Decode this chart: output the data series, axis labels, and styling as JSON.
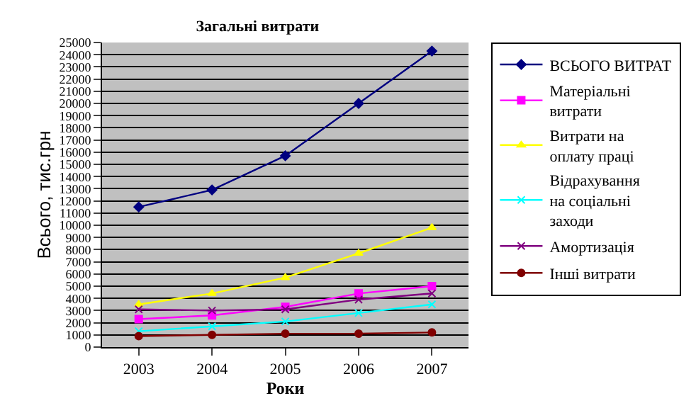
{
  "chart_data": {
    "type": "line",
    "title": "Загальні витрати",
    "xlabel": "Роки",
    "ylabel": "Всього, тис.грн",
    "categories": [
      "2003",
      "2004",
      "2005",
      "2006",
      "2007"
    ],
    "series": [
      {
        "name": "ВСЬОГО ВИТРАТ",
        "color": "#000080",
        "marker": "diamond",
        "values": [
          11500,
          12900,
          15700,
          20000,
          24300
        ]
      },
      {
        "name": "Матеріальні витрати",
        "color": "#ff00ff",
        "marker": "square",
        "values": [
          2300,
          2600,
          3300,
          4400,
          5000
        ]
      },
      {
        "name": "Витрати на оплату праці",
        "color": "#ffff00",
        "marker": "triangle",
        "values": [
          3500,
          4400,
          5700,
          7700,
          9800
        ]
      },
      {
        "name": "Відрахування на соціальні заходи",
        "color": "#00ffff",
        "marker": "cross",
        "values": [
          1300,
          1700,
          2100,
          2800,
          3500
        ]
      },
      {
        "name": "Амортизація",
        "color": "#800080",
        "marker": "cross",
        "values": [
          3100,
          3000,
          3100,
          3900,
          4400
        ]
      },
      {
        "name": "Інші витрати",
        "color": "#800000",
        "marker": "circle",
        "values": [
          900,
          1000,
          1100,
          1100,
          1200
        ]
      }
    ],
    "ylim": [
      0,
      25000
    ],
    "yticks": [
      0,
      1000,
      2000,
      3000,
      4000,
      5000,
      6000,
      7000,
      8000,
      9000,
      10000,
      11000,
      12000,
      13000,
      14000,
      15000,
      16000,
      17000,
      18000,
      19000,
      20000,
      21000,
      22000,
      23000,
      24000,
      25000
    ],
    "grid": "y",
    "legend": "right",
    "line_style": "solid"
  }
}
